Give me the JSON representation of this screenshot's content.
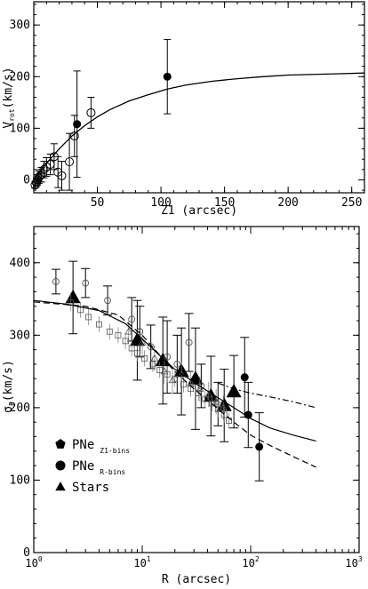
{
  "chart_data": [
    {
      "type": "scatter",
      "title": "",
      "xlabel": "Z1 (arcsec)",
      "ylabel_main": "V",
      "ylabel_sub": "rot",
      "ylabel_rest": "(km/s)",
      "xlim": [
        0,
        260
      ],
      "ylim": [
        -25,
        345
      ],
      "xscale": "linear",
      "xticks": [
        50,
        100,
        150,
        200,
        250
      ],
      "yticks": [
        0,
        100,
        200,
        300
      ],
      "minor_x_step": 10,
      "minor_y_step": 20,
      "grid": false,
      "series": [
        {
          "marker": "open-circle",
          "points": [
            {
              "x": 1,
              "y": -10,
              "err": 6
            },
            {
              "x": 2,
              "y": -5,
              "err": 8
            },
            {
              "x": 3,
              "y": 0,
              "err": 10
            },
            {
              "x": 4,
              "y": 5,
              "err": 12
            },
            {
              "x": 5,
              "y": 8,
              "err": 12
            },
            {
              "x": 6,
              "y": 10,
              "err": 14
            },
            {
              "x": 8,
              "y": 20,
              "err": 16
            },
            {
              "x": 10,
              "y": 25,
              "err": 18
            },
            {
              "x": 13,
              "y": 30,
              "err": 20
            },
            {
              "x": 16,
              "y": 45,
              "err": 25
            },
            {
              "x": 19,
              "y": 15,
              "err": 30
            },
            {
              "x": 22,
              "y": 8,
              "err": 28
            },
            {
              "x": 28,
              "y": 35,
              "err": 55
            },
            {
              "x": 32,
              "y": 85,
              "err": 40
            },
            {
              "x": 45,
              "y": 130,
              "err": 30
            }
          ]
        },
        {
          "marker": "filled-circle",
          "points": [
            {
              "x": 34,
              "y": 108,
              "err": 103
            },
            {
              "x": 105,
              "y": 200,
              "err": 72
            }
          ]
        },
        {
          "marker": "line",
          "points": [
            {
              "x": 0,
              "y": 0
            },
            {
              "x": 10,
              "y": 32
            },
            {
              "x": 20,
              "y": 60
            },
            {
              "x": 30,
              "y": 85
            },
            {
              "x": 40,
              "y": 105
            },
            {
              "x": 50,
              "y": 122
            },
            {
              "x": 60,
              "y": 136
            },
            {
              "x": 75,
              "y": 153
            },
            {
              "x": 90,
              "y": 165
            },
            {
              "x": 105,
              "y": 176
            },
            {
              "x": 120,
              "y": 184
            },
            {
              "x": 140,
              "y": 191
            },
            {
              "x": 160,
              "y": 196
            },
            {
              "x": 180,
              "y": 200
            },
            {
              "x": 200,
              "y": 203
            },
            {
              "x": 230,
              "y": 205
            },
            {
              "x": 260,
              "y": 207
            }
          ]
        }
      ]
    },
    {
      "type": "scatter",
      "title": "",
      "xlabel": "R (arcsec)",
      "ylabel_main": "σ",
      "ylabel_sub": "P",
      "ylabel_rest": "(km/s)",
      "xlim": [
        1,
        1000
      ],
      "ylim": [
        0,
        450
      ],
      "xscale": "log",
      "xticks": [
        1,
        10,
        100,
        1000
      ],
      "xtick_labels": [
        "10",
        "10",
        "10",
        "10"
      ],
      "xtick_exponents": [
        "0",
        "1",
        "2",
        "3"
      ],
      "yticks": [
        0,
        100,
        200,
        300,
        400
      ],
      "minor_y_step": 20,
      "grid": false,
      "legend": {
        "position": "lower-left",
        "entries": [
          {
            "marker": "pentagon",
            "label": "PNe",
            "sub": "Z1-bins"
          },
          {
            "marker": "filled-circle",
            "label": "PNe",
            "sub": "R-bins"
          },
          {
            "marker": "filled-triangle",
            "label": "Stars",
            "sub": ""
          }
        ]
      },
      "series": [
        {
          "marker": "filled-triangle",
          "points": [
            {
              "x": 2.3,
              "y": 352,
              "err": 50
            },
            {
              "x": 9.0,
              "y": 293,
              "err": 55
            },
            {
              "x": 15.5,
              "y": 265,
              "err": 60
            },
            {
              "x": 23,
              "y": 250,
              "err": 60
            },
            {
              "x": 31,
              "y": 240,
              "err": 70
            },
            {
              "x": 43,
              "y": 216,
              "err": 55
            },
            {
              "x": 57,
              "y": 203,
              "err": 50
            },
            {
              "x": 70,
              "y": 222,
              "err": 50
            }
          ]
        },
        {
          "marker": "filled-circle",
          "points": [
            {
              "x": 88,
              "y": 242,
              "err": 55
            },
            {
              "x": 95,
              "y": 190,
              "err": 45
            },
            {
              "x": 120,
              "y": 146,
              "err": 47
            }
          ]
        },
        {
          "marker": "open-circle",
          "points": [
            {
              "x": 1.6,
              "y": 374,
              "err": 17
            },
            {
              "x": 3.0,
              "y": 372,
              "err": 20
            },
            {
              "x": 4.8,
              "y": 348,
              "err": 20
            },
            {
              "x": 8.0,
              "y": 322,
              "err": 30
            },
            {
              "x": 9.5,
              "y": 305,
              "err": 35
            },
            {
              "x": 12,
              "y": 284,
              "err": 30
            },
            {
              "x": 17,
              "y": 270,
              "err": 50
            },
            {
              "x": 21,
              "y": 260,
              "err": 40
            },
            {
              "x": 27,
              "y": 290,
              "err": 40
            },
            {
              "x": 35,
              "y": 230,
              "err": 30
            },
            {
              "x": 50,
              "y": 205,
              "err": 30
            }
          ]
        },
        {
          "marker": "open-square",
          "points": [
            {
              "x": 2.2,
              "y": 345
            },
            {
              "x": 2.7,
              "y": 335
            },
            {
              "x": 3.2,
              "y": 325
            },
            {
              "x": 4.0,
              "y": 315
            },
            {
              "x": 5.0,
              "y": 305
            },
            {
              "x": 6.0,
              "y": 300
            },
            {
              "x": 7.0,
              "y": 292
            },
            {
              "x": 8.0,
              "y": 282
            },
            {
              "x": 9.0,
              "y": 275
            },
            {
              "x": 10.5,
              "y": 268
            },
            {
              "x": 12.5,
              "y": 260
            },
            {
              "x": 14.5,
              "y": 252
            },
            {
              "x": 17,
              "y": 246
            },
            {
              "x": 20,
              "y": 240
            },
            {
              "x": 24,
              "y": 232
            },
            {
              "x": 28,
              "y": 226
            },
            {
              "x": 33,
              "y": 220
            },
            {
              "x": 38,
              "y": 212
            },
            {
              "x": 44,
              "y": 206
            },
            {
              "x": 50,
              "y": 198
            },
            {
              "x": 57,
              "y": 190
            },
            {
              "x": 63,
              "y": 182
            }
          ]
        },
        {
          "marker": "open-triangle",
          "points": [
            {
              "x": 7.5,
              "y": 305
            },
            {
              "x": 10,
              "y": 290
            },
            {
              "x": 13,
              "y": 268
            },
            {
              "x": 16,
              "y": 250
            },
            {
              "x": 19,
              "y": 238
            },
            {
              "x": 23,
              "y": 246
            },
            {
              "x": 28,
              "y": 234
            },
            {
              "x": 34,
              "y": 226
            },
            {
              "x": 41,
              "y": 218
            },
            {
              "x": 48,
              "y": 208
            },
            {
              "x": 56,
              "y": 200
            }
          ]
        },
        {
          "marker": "solid-line",
          "points": [
            {
              "x": 1,
              "y": 348
            },
            {
              "x": 2,
              "y": 343
            },
            {
              "x": 4,
              "y": 334
            },
            {
              "x": 7,
              "y": 316
            },
            {
              "x": 10,
              "y": 295
            },
            {
              "x": 15,
              "y": 270
            },
            {
              "x": 20,
              "y": 253
            },
            {
              "x": 30,
              "y": 235
            },
            {
              "x": 45,
              "y": 218
            },
            {
              "x": 70,
              "y": 200
            },
            {
              "x": 100,
              "y": 185
            },
            {
              "x": 150,
              "y": 172
            },
            {
              "x": 250,
              "y": 162
            },
            {
              "x": 400,
              "y": 154
            }
          ]
        },
        {
          "marker": "dash-line",
          "points": [
            {
              "x": 1,
              "y": 346
            },
            {
              "x": 3,
              "y": 340
            },
            {
              "x": 6,
              "y": 328
            },
            {
              "x": 10,
              "y": 300
            },
            {
              "x": 15,
              "y": 270
            },
            {
              "x": 20,
              "y": 250
            },
            {
              "x": 30,
              "y": 226
            },
            {
              "x": 45,
              "y": 204
            },
            {
              "x": 70,
              "y": 180
            },
            {
              "x": 100,
              "y": 162
            },
            {
              "x": 150,
              "y": 148
            },
            {
              "x": 250,
              "y": 132
            },
            {
              "x": 400,
              "y": 118
            }
          ]
        },
        {
          "marker": "dashdot-line",
          "points": [
            {
              "x": 50,
              "y": 234
            },
            {
              "x": 70,
              "y": 226
            },
            {
              "x": 100,
              "y": 220
            },
            {
              "x": 150,
              "y": 215
            },
            {
              "x": 250,
              "y": 208
            },
            {
              "x": 400,
              "y": 200
            }
          ]
        }
      ]
    }
  ]
}
